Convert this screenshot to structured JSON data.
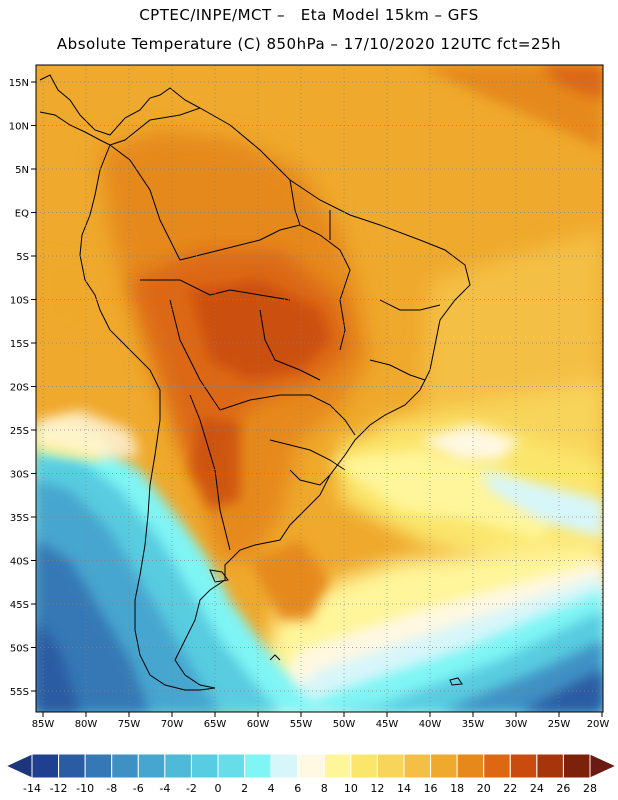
{
  "header": {
    "line1": "CPTEC/INPE/MCT –   Eta Model 15km – GFS",
    "line2": "Absolute Temperature (C) 850hPa – 17/10/2020 12UTC fct=25h"
  },
  "lat_labels": [
    "15N",
    "10N",
    "5N",
    "EQ",
    "5S",
    "10S",
    "15S",
    "20S",
    "25S",
    "30S",
    "35S",
    "40S",
    "45S",
    "50S",
    "55S"
  ],
  "lon_labels": [
    "85W",
    "80W",
    "75W",
    "70W",
    "65W",
    "60W",
    "55W",
    "50W",
    "45W",
    "40W",
    "35W",
    "30W",
    "25W",
    "20W"
  ],
  "colorbar": {
    "labels": [
      "-14",
      "-12",
      "-10",
      "-8",
      "-6",
      "-4",
      "-2",
      "0",
      "2",
      "4",
      "6",
      "8",
      "10",
      "12",
      "14",
      "16",
      "18",
      "20",
      "22",
      "24",
      "26",
      "28"
    ],
    "colors": [
      "#1f3f8f",
      "#2a5ca3",
      "#3678b5",
      "#3f91c4",
      "#47a6cf",
      "#4fbad8",
      "#58cce0",
      "#66dde9",
      "#7ff5f5",
      "#d7f6fa",
      "#fff8e2",
      "#fff59a",
      "#fbe66c",
      "#f8d45a",
      "#f4bf44",
      "#efa92c",
      "#e6891a",
      "#dc6812",
      "#c94c0e",
      "#a7350c",
      "#7c220a"
    ]
  }
}
